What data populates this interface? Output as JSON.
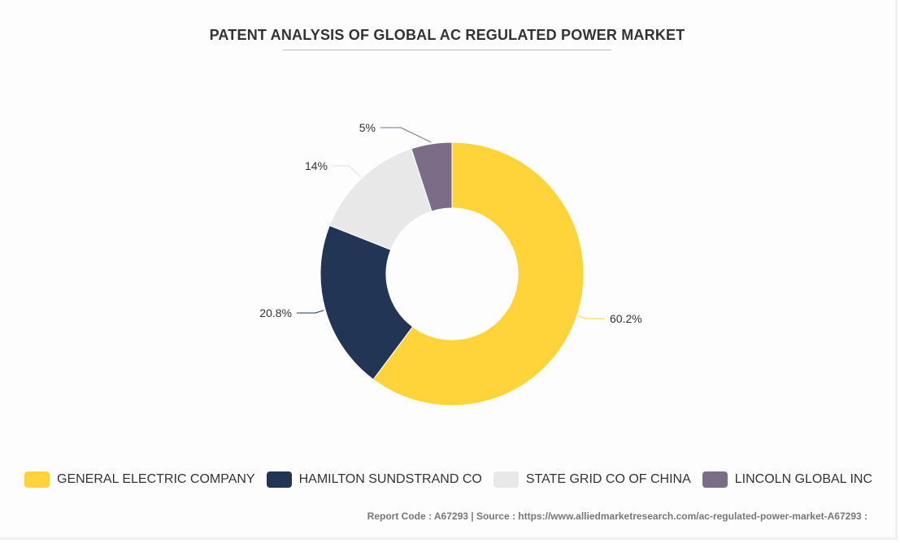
{
  "chart_data": {
    "type": "pie",
    "title": "PATENT ANALYSIS OF GLOBAL AC REGULATED POWER MARKET",
    "donut": true,
    "categories": [
      "GENERAL ELECTRIC COMPANY",
      "HAMILTON SUNDSTRAND CO",
      "STATE GRID CO OF CHINA",
      "LINCOLN GLOBAL INC"
    ],
    "values": [
      60.2,
      20.8,
      14,
      5
    ],
    "data_labels": [
      "60.2%",
      "20.8%",
      "14%",
      "5%"
    ],
    "colors": [
      "#ffd43b",
      "#233555",
      "#e8e8e8",
      "#7b6d88"
    ],
    "legend_position": "bottom"
  },
  "footer": "Report Code : A67293  |  Source : https://www.alliedmarketresearch.com/ac-regulated-power-market-A67293 :"
}
